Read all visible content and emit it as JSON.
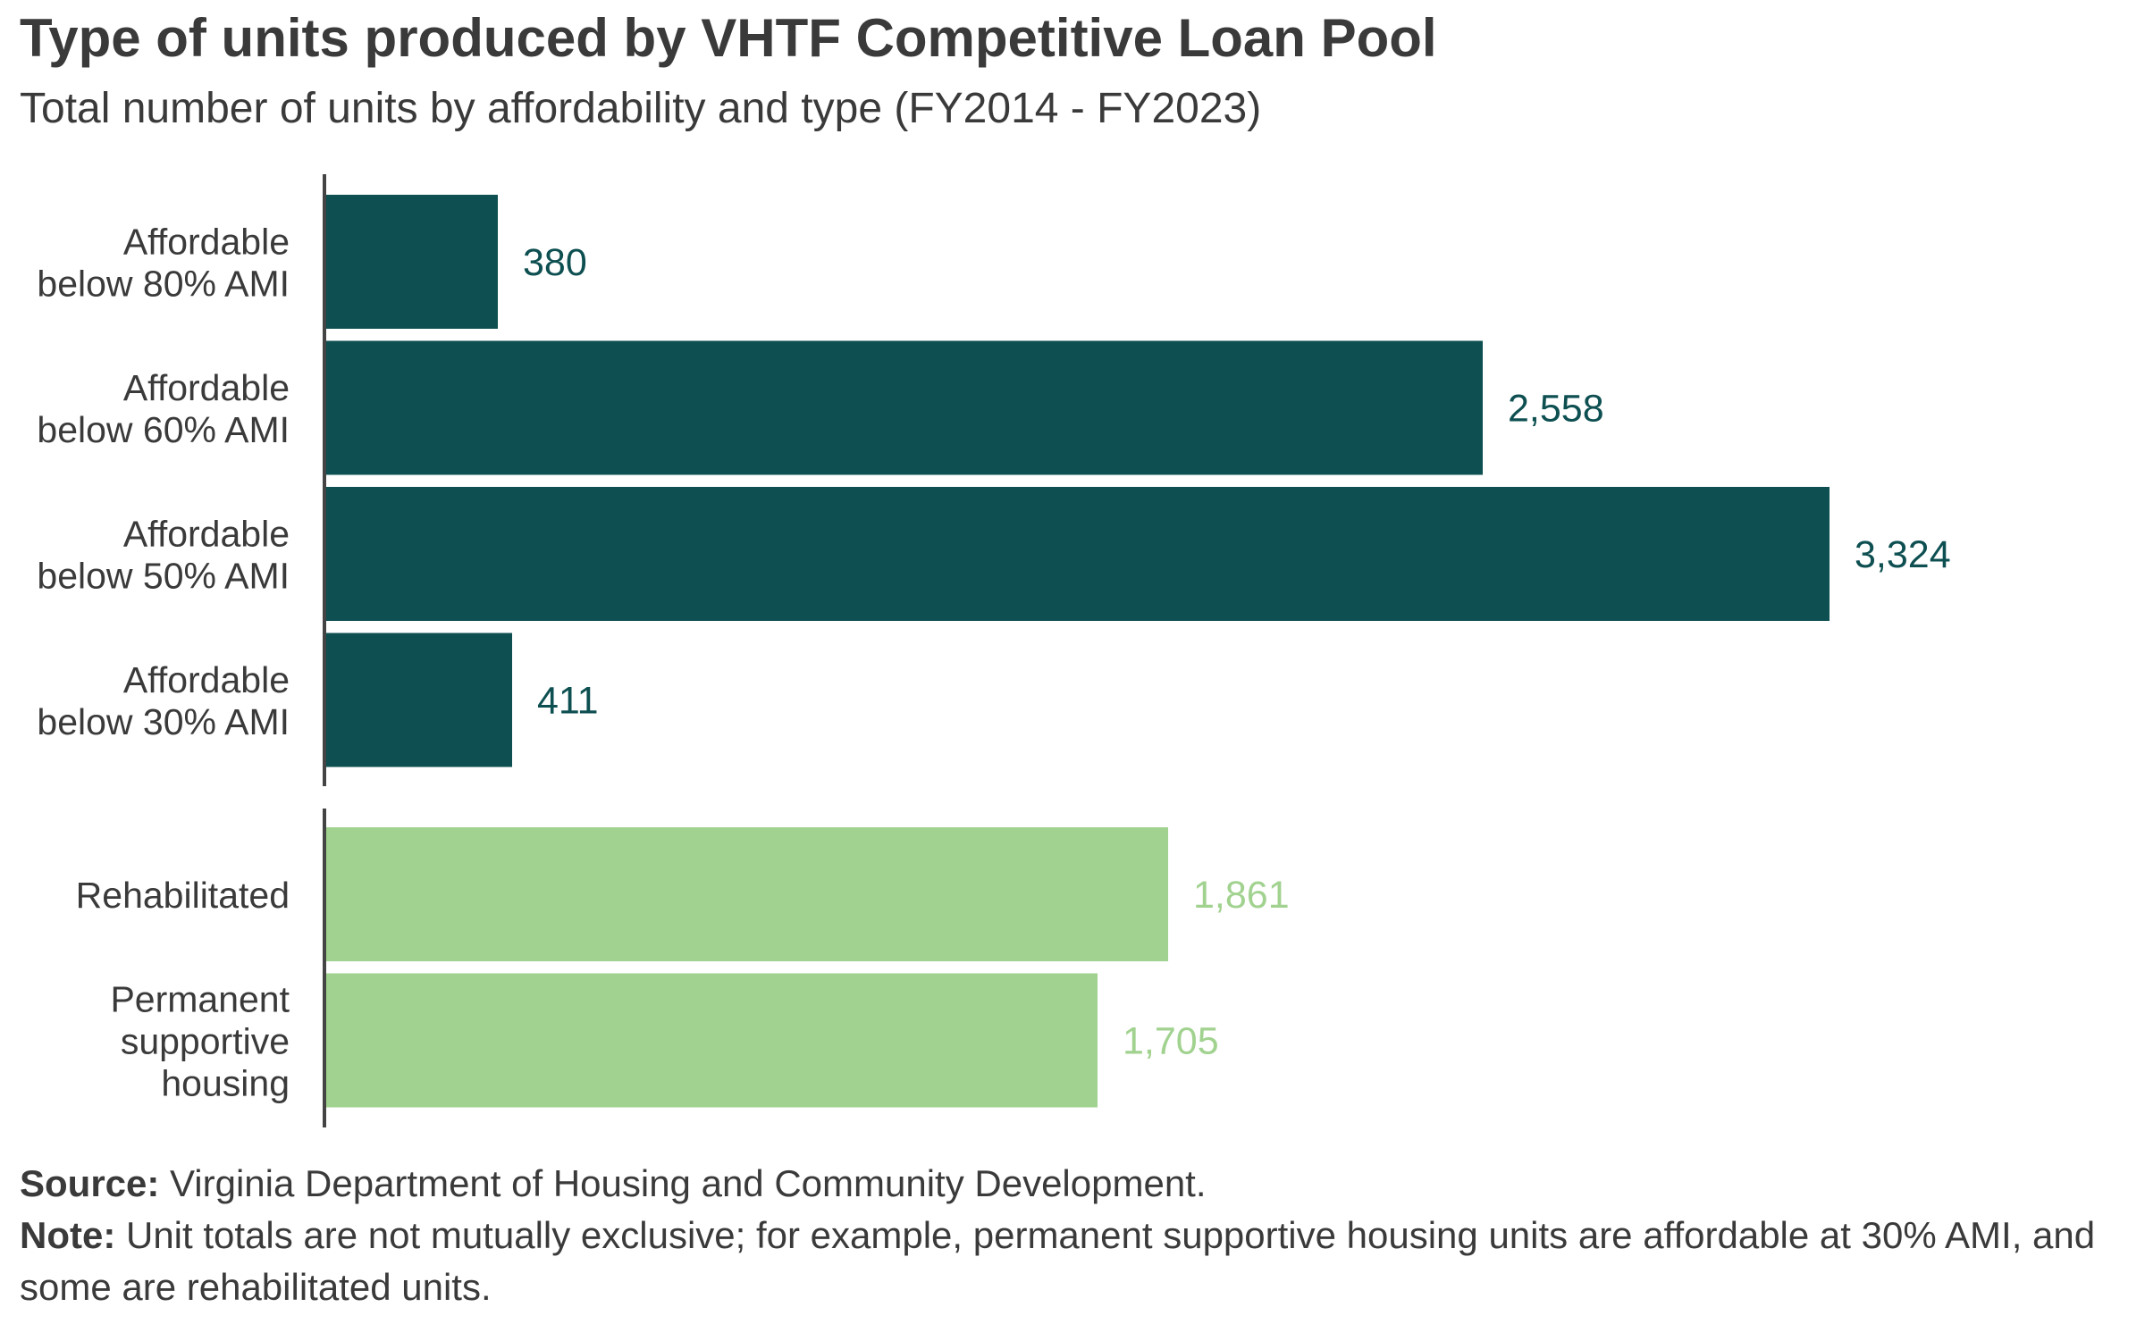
{
  "chart_data": {
    "type": "bar",
    "orientation": "horizontal",
    "title": "Type of units produced by VHTF Competitive Loan Pool",
    "subtitle": "Total number of units by affordability and type (FY2014 - FY2023)",
    "xlim": [
      0,
      3324
    ],
    "grid": false,
    "groups": [
      {
        "color": "#0e4f51",
        "bars": [
          {
            "category": [
              "Affordable",
              "below 80% AMI"
            ],
            "value": 380,
            "label": "380"
          },
          {
            "category": [
              "Affordable",
              "below 60% AMI"
            ],
            "value": 2558,
            "label": "2,558"
          },
          {
            "category": [
              "Affordable",
              "below 50% AMI"
            ],
            "value": 3324,
            "label": "3,324"
          },
          {
            "category": [
              "Affordable",
              "below 30% AMI"
            ],
            "value": 411,
            "label": "411"
          }
        ]
      },
      {
        "color": "#a1d28f",
        "bars": [
          {
            "category": [
              "Rehabilitated"
            ],
            "value": 1861,
            "label": "1,861"
          },
          {
            "category": [
              "Permanent",
              "supportive",
              "housing"
            ],
            "value": 1705,
            "label": "1,705"
          }
        ]
      }
    ]
  },
  "footer": {
    "source_label": "Source:",
    "source_text": " Virginia Department of Housing and Community Development.",
    "note_label": "Note:",
    "note_text": " Unit totals are not mutually exclusive; for example, permanent supportive housing units are affordable at 30% AMI, and some are rehabilitated units."
  },
  "colors": {
    "text": "#3a3a3a",
    "axis": "#444444"
  }
}
